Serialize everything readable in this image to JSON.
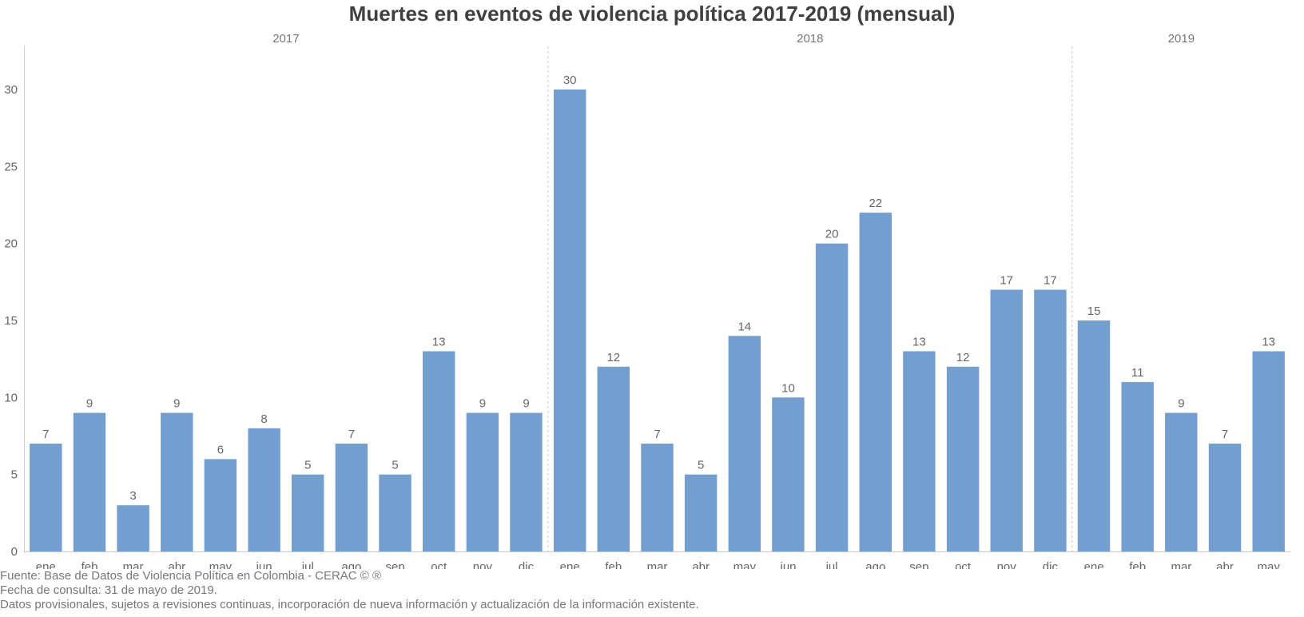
{
  "chart_data": {
    "type": "bar",
    "title": "Muertes en eventos de violencia política 2017-2019 (mensual)",
    "xlabel": "",
    "ylabel": "",
    "ylim": [
      0,
      33
    ],
    "yticks": [
      0,
      5,
      10,
      15,
      20,
      25,
      30
    ],
    "grid": false,
    "bar_color": "#729FCF",
    "groups": [
      {
        "year": "2017",
        "categories": [
          "ene",
          "feb",
          "mar",
          "abr",
          "may",
          "jun",
          "jul",
          "ago",
          "sep",
          "oct",
          "nov",
          "dic"
        ],
        "values": [
          7,
          9,
          3,
          9,
          6,
          8,
          5,
          7,
          5,
          13,
          9,
          9
        ]
      },
      {
        "year": "2018",
        "categories": [
          "ene",
          "feb",
          "mar",
          "abr",
          "may",
          "jun",
          "jul",
          "ago",
          "sep",
          "oct",
          "nov",
          "dic"
        ],
        "values": [
          30,
          12,
          7,
          5,
          14,
          10,
          20,
          22,
          13,
          12,
          17,
          17
        ]
      },
      {
        "year": "2019",
        "categories": [
          "ene",
          "feb",
          "mar",
          "abr",
          "may"
        ],
        "values": [
          15,
          11,
          9,
          7,
          13
        ]
      }
    ]
  },
  "footer": {
    "source": "Fuente: Base de Datos de Violencia Política en Colombia - CERAC © ®",
    "date": "Fecha de consulta: 31 de mayo de 2019.",
    "note": "Datos provisionales, sujetos a revisiones continuas, incorporación de nueva información y actualización de la información existente."
  }
}
